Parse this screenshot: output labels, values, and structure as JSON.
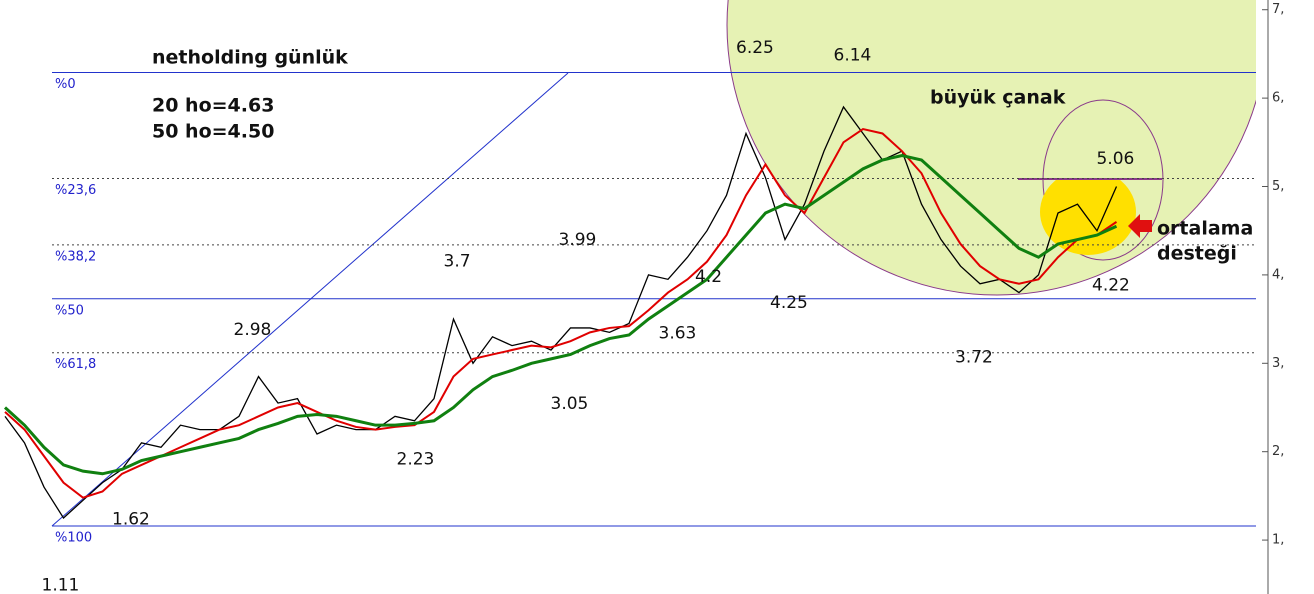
{
  "chart_data": {
    "type": "line",
    "title": "netholding günlük",
    "notes": [
      "20 ho=4.63",
      "50 ho=4.50"
    ],
    "pattern_labels": [
      "büyük çanak",
      "ortalama",
      "desteği"
    ],
    "ylim": [
      0.39,
      7.11
    ],
    "yticks": [
      {
        "value": 1,
        "label": "1,"
      },
      {
        "value": 2,
        "label": "2,"
      },
      {
        "value": 3,
        "label": "3,"
      },
      {
        "value": 4,
        "label": "4,"
      },
      {
        "value": 5,
        "label": "5,"
      },
      {
        "value": 6,
        "label": "6,"
      },
      {
        "value": 7,
        "label": "7,"
      }
    ],
    "fib_levels": [
      {
        "label": "%0",
        "value": 6.29,
        "style": "solid"
      },
      {
        "label": "%23,6",
        "value": 5.09,
        "style": "dotted"
      },
      {
        "label": "%38,2",
        "value": 4.34,
        "style": "dotted"
      },
      {
        "label": "%50",
        "value": 3.73,
        "style": "solid"
      },
      {
        "label": "%61,8",
        "value": 3.12,
        "style": "dotted"
      },
      {
        "label": "%100",
        "value": 1.16,
        "style": "solid"
      }
    ],
    "series": [
      {
        "color": "#000000",
        "values": [
          2.4,
          2.1,
          1.6,
          1.25,
          1.45,
          1.65,
          1.8,
          2.1,
          2.05,
          2.3,
          2.25,
          2.25,
          2.4,
          2.85,
          2.55,
          2.6,
          2.2,
          2.3,
          2.25,
          2.25,
          2.4,
          2.35,
          2.6,
          3.5,
          3.0,
          3.3,
          3.2,
          3.25,
          3.15,
          3.4,
          3.4,
          3.35,
          3.45,
          4.0,
          3.95,
          4.2,
          4.5,
          4.9,
          5.6,
          5.1,
          4.4,
          4.8,
          5.4,
          5.9,
          5.6,
          5.3,
          5.4,
          4.8,
          4.4,
          4.1,
          3.9,
          3.95,
          3.8,
          4.0,
          4.7,
          4.8,
          4.5,
          5.0
        ]
      },
      {
        "color": "#e00000",
        "values": [
          2.45,
          2.25,
          1.95,
          1.65,
          1.48,
          1.55,
          1.75,
          1.85,
          1.95,
          2.05,
          2.15,
          2.25,
          2.3,
          2.4,
          2.5,
          2.55,
          2.45,
          2.35,
          2.28,
          2.25,
          2.28,
          2.3,
          2.45,
          2.85,
          3.05,
          3.1,
          3.15,
          3.2,
          3.18,
          3.25,
          3.35,
          3.4,
          3.42,
          3.6,
          3.8,
          3.95,
          4.15,
          4.45,
          4.9,
          5.25,
          4.9,
          4.7,
          5.1,
          5.5,
          5.65,
          5.6,
          5.4,
          5.15,
          4.7,
          4.35,
          4.1,
          3.95,
          3.9,
          3.95,
          4.2,
          4.4,
          4.45,
          4.6
        ]
      },
      {
        "color": "#108010",
        "values": [
          2.5,
          2.3,
          2.05,
          1.85,
          1.78,
          1.75,
          1.8,
          1.9,
          1.95,
          2.0,
          2.05,
          2.1,
          2.15,
          2.25,
          2.32,
          2.4,
          2.42,
          2.4,
          2.35,
          2.3,
          2.3,
          2.32,
          2.35,
          2.5,
          2.7,
          2.85,
          2.92,
          3.0,
          3.05,
          3.1,
          3.2,
          3.28,
          3.32,
          3.5,
          3.65,
          3.8,
          3.95,
          4.2,
          4.45,
          4.7,
          4.8,
          4.75,
          4.9,
          5.05,
          5.2,
          5.3,
          5.35,
          5.3,
          5.1,
          4.9,
          4.7,
          4.5,
          4.3,
          4.2,
          4.35,
          4.4,
          4.45,
          4.55
        ]
      }
    ],
    "price_labels": [
      {
        "value": 6.25,
        "x": 38
      },
      {
        "value": 6.14,
        "x": 43
      },
      {
        "value": 5.06,
        "x": 57
      },
      {
        "value": 4.22,
        "x": 56
      },
      {
        "value": 3.72,
        "x": 50
      },
      {
        "value": 4.25,
        "x": 40
      },
      {
        "value": 4.2,
        "x": 36
      },
      {
        "value": 3.99,
        "x": 29
      },
      {
        "value": 3.63,
        "x": 33
      },
      {
        "value": 3.7,
        "x": 23
      },
      {
        "value": 3.05,
        "x": 29
      },
      {
        "value": 2.98,
        "x": 13
      },
      {
        "value": 2.23,
        "x": 21
      },
      {
        "value": 1.62,
        "x": 6
      },
      {
        "value": 1.11,
        "x": 3
      }
    ]
  }
}
